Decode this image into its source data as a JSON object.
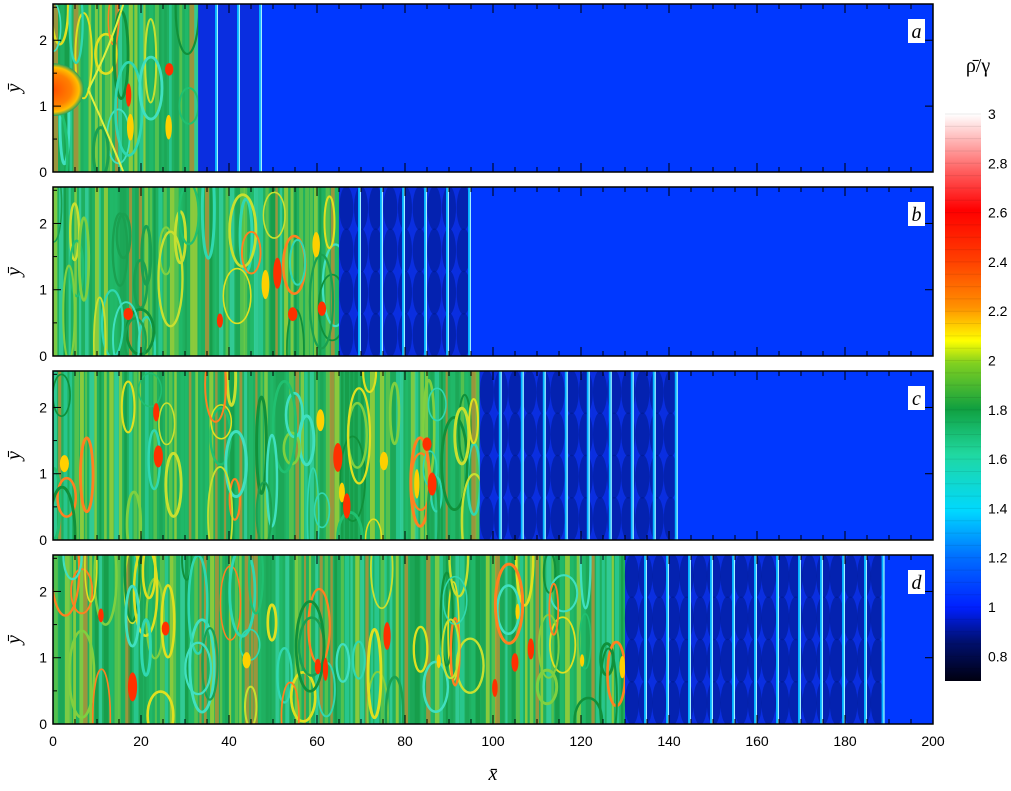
{
  "chart_data": {
    "type": "heatmap",
    "title": "",
    "xlabel": "x̄",
    "ylabel": "ȳ",
    "xlim": [
      0,
      200
    ],
    "ylim": [
      0,
      2.55
    ],
    "x_ticks": [
      0,
      20,
      40,
      60,
      80,
      100,
      120,
      140,
      160,
      180,
      200
    ],
    "x_tick_labels": [
      "0",
      "20",
      "40",
      "60",
      "80",
      "100",
      "120",
      "140",
      "160",
      "180",
      "200"
    ],
    "y_ticks": [
      0,
      1,
      2
    ],
    "y_tick_labels": [
      "0",
      "1",
      "2"
    ],
    "colorbar": {
      "title": "ρ̄/γ",
      "range": [
        0.7,
        3
      ],
      "ticks": [
        0.8,
        1,
        1.2,
        1.4,
        1.6,
        1.8,
        2,
        2.2,
        2.4,
        2.6,
        2.8,
        3
      ],
      "tick_labels": [
        "0.8",
        "1",
        "1.2",
        "1.4",
        "1.6",
        "1.8",
        "2",
        "2.2",
        "2.4",
        "2.6",
        "2.8",
        "3"
      ]
    },
    "panels": [
      {
        "label": "a",
        "front_x": 47.5,
        "active_end_x": 33,
        "wave_lines_x": [
          37.5,
          42.5,
          47.5
        ],
        "jet": {
          "x_center": 0,
          "y_center": 1.25,
          "x_radius": 7,
          "y_radius": 0.4
        },
        "background_value": 1.0
      },
      {
        "label": "b",
        "front_x": 95,
        "active_end_x": 65,
        "wave_lines_x": [
          70,
          75,
          80,
          85,
          90,
          95
        ],
        "background_value": 1.0
      },
      {
        "label": "c",
        "front_x": 142,
        "active_end_x": 97,
        "wave_lines_x": [
          102,
          107,
          112,
          117,
          122,
          127,
          132,
          137,
          142
        ],
        "background_value": 1.0
      },
      {
        "label": "d",
        "front_x": 189,
        "active_end_x": 130,
        "wave_lines_x": [
          135,
          140,
          145,
          150,
          155,
          160,
          165,
          170,
          175,
          180,
          185,
          189
        ],
        "background_value": 1.0
      }
    ]
  }
}
